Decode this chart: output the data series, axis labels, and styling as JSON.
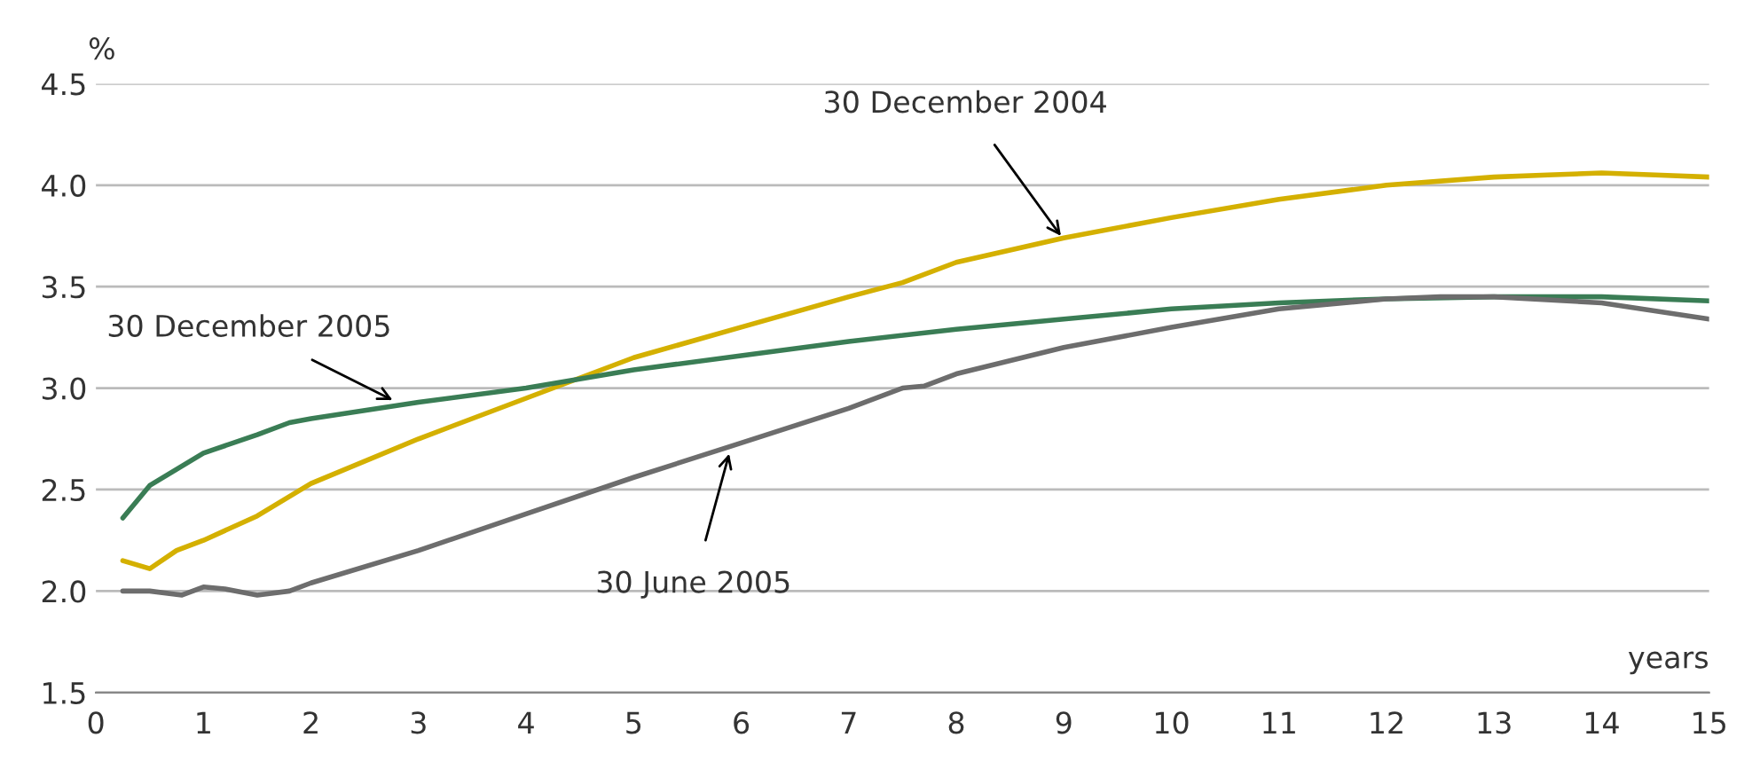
{
  "chart_data": {
    "type": "line",
    "xlabel": "years",
    "ylabel": "%",
    "xlim": [
      0,
      15
    ],
    "ylim": [
      1.5,
      4.5
    ],
    "xticks": [
      0,
      1,
      2,
      3,
      4,
      5,
      6,
      7,
      8,
      9,
      10,
      11,
      12,
      13,
      14,
      15
    ],
    "yticks": [
      {
        "value": 1.5,
        "label": "1.5"
      },
      {
        "value": 2.0,
        "label": "2.0"
      },
      {
        "value": 2.5,
        "label": "2.5"
      },
      {
        "value": 3.0,
        "label": "3.0"
      },
      {
        "value": 3.5,
        "label": "3.5"
      },
      {
        "value": 4.0,
        "label": "4.0"
      },
      {
        "value": 4.5,
        "label": "4.5"
      }
    ],
    "grid": "y",
    "legend": false,
    "marker": "none",
    "line_style": "solid",
    "series": [
      {
        "color": "#d4b000",
        "x": [
          0.25,
          0.5,
          0.75,
          1,
          1.5,
          2,
          3,
          4,
          5,
          6,
          7,
          7.5,
          8,
          9,
          10,
          11,
          12,
          13,
          13.5,
          14,
          14.5,
          15
        ],
        "values": [
          2.15,
          2.11,
          2.2,
          2.25,
          2.37,
          2.53,
          2.75,
          2.95,
          3.15,
          3.3,
          3.45,
          3.52,
          3.62,
          3.74,
          3.84,
          3.93,
          4.0,
          4.04,
          4.05,
          4.06,
          4.05,
          4.04
        ]
      },
      {
        "color": "#3a7d55",
        "x": [
          0.25,
          0.5,
          0.75,
          1,
          1.5,
          1.8,
          2,
          3,
          4,
          5,
          6,
          7,
          8,
          9,
          10,
          11,
          12,
          13,
          14,
          15
        ],
        "values": [
          2.36,
          2.52,
          2.6,
          2.68,
          2.77,
          2.83,
          2.85,
          2.93,
          3.0,
          3.09,
          3.16,
          3.23,
          3.29,
          3.34,
          3.39,
          3.42,
          3.44,
          3.45,
          3.45,
          3.43
        ]
      },
      {
        "color": "#6d6d6d",
        "x": [
          0.25,
          0.5,
          0.8,
          1.0,
          1.2,
          1.5,
          1.8,
          2,
          3,
          4,
          5,
          6,
          7,
          7.5,
          7.7,
          8,
          9,
          10,
          11,
          12,
          12.5,
          13,
          14,
          15
        ],
        "values": [
          2.0,
          2.0,
          1.98,
          2.02,
          2.01,
          1.98,
          2.0,
          2.04,
          2.2,
          2.38,
          2.56,
          2.73,
          2.9,
          3.0,
          3.01,
          3.07,
          3.2,
          3.3,
          3.39,
          3.44,
          3.45,
          3.45,
          3.42,
          3.34
        ]
      }
    ],
    "annotations": [
      {
        "text": "30 December 2004",
        "x": 9.0,
        "y": 3.73
      },
      {
        "text": "30 December 2005",
        "x": 2.8,
        "y": 2.93
      },
      {
        "text": "30 June 2005",
        "x": 5.9,
        "y": 2.7
      }
    ]
  }
}
